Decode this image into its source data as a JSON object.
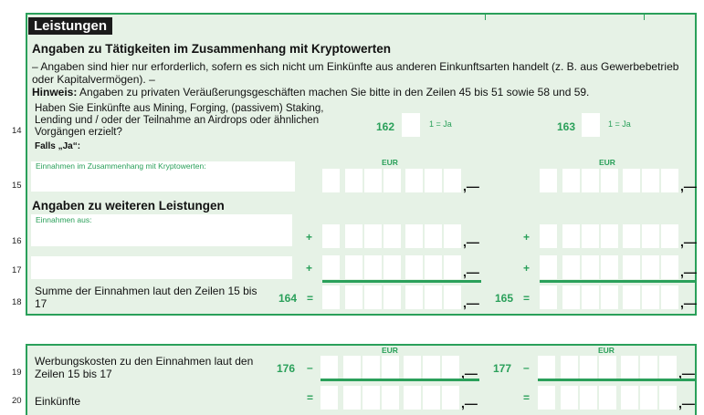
{
  "section_title": "Leistungen",
  "crypto": {
    "heading": "Angaben zu Tätigkeiten im Zusammenhang mit Kryptowerten",
    "intro": "– Angaben sind hier nur erforderlich, sofern es sich nicht um Einkünfte aus anderen Einkunftsarten handelt (z. B. aus Gewerbebetrieb oder Kapitalvermögen). –",
    "hint_label": "Hinweis:",
    "hint_text": " Angaben zu privaten Veräußerungsgeschäften machen Sie bitte in den Zeilen 45 bis 51 sowie 58 und 59."
  },
  "rows": {
    "r14": {
      "num": "14",
      "question": "Haben Sie Einkünfte aus Mining, Forging, (passivem) Staking, Lending und / oder der Teilnahme an Airdrops oder ähnlichen Vorgängen erzielt?",
      "code_a": "162",
      "code_a_note": "1 = Ja",
      "code_b": "163",
      "code_b_note": "1 = Ja"
    },
    "falls_ja": "Falls „Ja“:",
    "r15": {
      "num": "15",
      "field_label": "Einnahmen im Zusammenhang mit Kryptowerten:",
      "currency_a": "EUR",
      "currency_b": "EUR",
      "suffix": ",—"
    },
    "further_heading": "Angaben zu weiteren Leistungen",
    "einnahmen_aus": "Einnahmen aus:",
    "r16": {
      "num": "16",
      "op": "+",
      "suffix": ",—"
    },
    "r17": {
      "num": "17",
      "op": "+",
      "suffix": ",—"
    },
    "r18": {
      "num": "18",
      "label": "Summe der Einnahmen laut den Zeilen 15 bis 17",
      "code_a": "164",
      "code_b": "165",
      "op": "=",
      "suffix": ",—"
    },
    "r19": {
      "num": "19",
      "label": "Werbungskosten zu den Einnahmen laut den Zeilen 15 bis 17",
      "code_a": "176",
      "code_b": "177",
      "op": "–",
      "currency_a": "EUR",
      "currency_b": "EUR",
      "suffix": ",—"
    },
    "r20": {
      "num": "20",
      "label": "Einkünfte",
      "op": "=",
      "suffix": ",—"
    }
  },
  "colors": {
    "accent": "#2aa05a",
    "panel": "#e6f2e6"
  }
}
